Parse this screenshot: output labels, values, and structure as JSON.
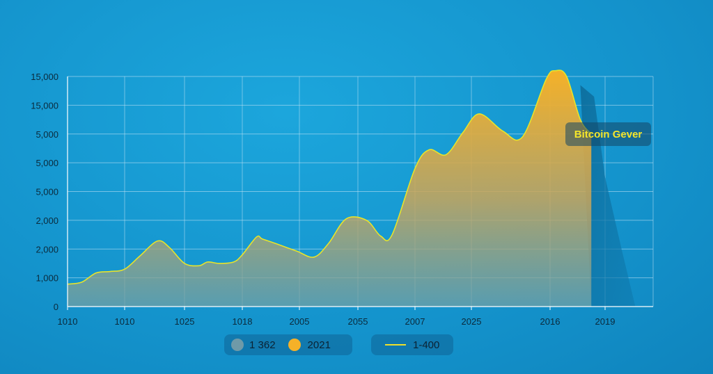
{
  "chart_data": {
    "type": "area",
    "title": "",
    "xlabel": "",
    "ylabel": "",
    "y_tick_labels": [
      "0",
      "1,000",
      "2,000",
      "2,000",
      "5,000",
      "5,000",
      "5,000",
      "15,000",
      "15,000"
    ],
    "x_tick_labels": [
      "1010",
      "1010",
      "1025",
      "1018",
      "2005",
      "2055",
      "2007",
      "2025",
      "2016",
      "2019"
    ],
    "series": [
      {
        "name": "2021",
        "color": "#f5b128",
        "values": [
          [
            0,
            0.78
          ],
          [
            0.25,
            0.85
          ],
          [
            0.5,
            1.17
          ],
          [
            0.75,
            1.22
          ],
          [
            1.0,
            1.3
          ],
          [
            1.25,
            1.75
          ],
          [
            1.55,
            2.28
          ],
          [
            1.75,
            2.05
          ],
          [
            2.0,
            1.5
          ],
          [
            2.25,
            1.42
          ],
          [
            2.4,
            1.55
          ],
          [
            2.6,
            1.5
          ],
          [
            2.85,
            1.55
          ],
          [
            3.0,
            1.8
          ],
          [
            3.25,
            2.42
          ],
          [
            3.35,
            2.35
          ],
          [
            3.6,
            2.18
          ],
          [
            3.95,
            1.93
          ],
          [
            4.25,
            1.72
          ],
          [
            4.5,
            2.2
          ],
          [
            4.8,
            3.05
          ],
          [
            5.15,
            3.0
          ],
          [
            5.4,
            2.45
          ],
          [
            5.6,
            2.5
          ],
          [
            6.0,
            4.8
          ],
          [
            6.25,
            5.45
          ],
          [
            6.55,
            5.28
          ],
          [
            6.85,
            6.05
          ],
          [
            7.1,
            6.7
          ],
          [
            7.4,
            6.1
          ],
          [
            7.65,
            5.9
          ],
          [
            7.95,
            7.9
          ],
          [
            8.1,
            8.2
          ],
          [
            8.3,
            8.0
          ],
          [
            8.55,
            6.5
          ],
          [
            8.75,
            6.0
          ]
        ]
      }
    ],
    "shadow_series": {
      "color": "#0e6f9e",
      "values": [
        [
          8.55,
          7.7
        ],
        [
          8.8,
          7.3
        ],
        [
          9.0,
          4.5
        ],
        [
          9.3,
          2.0
        ],
        [
          9.55,
          0
        ]
      ]
    },
    "end_index": 8.75,
    "grid": true,
    "legend_placement": "bottom"
  },
  "legend": {
    "item1_label": "1 362",
    "item1_color": "#6f9aa8",
    "item2_label": "2021",
    "item2_color": "#f5b128",
    "item3_label": "1-400",
    "item3_color": "#f0e02a"
  },
  "annotation": {
    "text": "Bitcoin Gever"
  }
}
